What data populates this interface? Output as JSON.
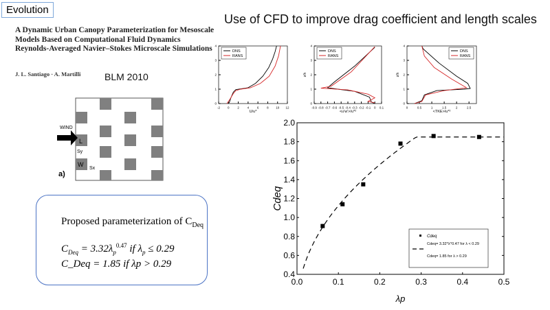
{
  "slide": {
    "tag": "Evolution",
    "headline": "Use of CFD to improve drag coefficient and length scales"
  },
  "paper": {
    "title": "A Dynamic Urban Canopy Parameterization for Mesoscale Models Based on Computational Fluid Dynamics Reynolds-Averaged Navier–Stokes Microscale Simulations",
    "authors": "J. L. Santiago · A. Martilli",
    "journal": "BLM 2010"
  },
  "diagram": {
    "wind": "WIND",
    "L": "L",
    "W": "W",
    "Sy": "Sy",
    "Sx": "Sx",
    "panel": "a)"
  },
  "param": {
    "title": "Proposed parameterization of C",
    "title_sub": "Deq",
    "eq1": "C_Deq = 3.32 λp^0.47 if λp ≤ 0.29",
    "eq2": "C_Deq = 1.85 if λp > 0.29",
    "eq1_parts": {
      "c": "C",
      "sub": "Deq",
      "rest": " = 3.32λ",
      "p": "p",
      "exp": "0.47",
      "cond": " if λ",
      "cond_p": "p",
      "tail": " ≤ 0.29"
    },
    "eq2_parts": {
      "c": "C",
      "sub": "Deq",
      "rest": " = 1.85 if λ",
      "p": "p",
      "tail": " > 0.29"
    }
  },
  "colors": {
    "dns": "#000000",
    "rans": "#d62728",
    "box": "#4a72c4",
    "block": "#808080"
  },
  "chart_data": [
    {
      "type": "line",
      "xlabel": "U/u*",
      "ylabel": "",
      "xlim": [
        -2,
        12
      ],
      "ylim": [
        0,
        4
      ],
      "xticks": [
        -2,
        0,
        2,
        4,
        6,
        8,
        10,
        12
      ],
      "yticks": [
        0,
        1,
        2,
        3,
        4
      ],
      "legend": "top-left",
      "series": [
        {
          "name": "DNS",
          "points": [
            [
              0,
              0
            ],
            [
              0.2,
              0.1
            ],
            [
              0.5,
              0.4
            ],
            [
              1,
              0.8
            ],
            [
              1.5,
              0.97
            ],
            [
              2.5,
              1.02
            ],
            [
              4,
              1.1
            ],
            [
              5.5,
              1.4
            ],
            [
              7,
              1.9
            ],
            [
              8.2,
              2.5
            ],
            [
              9,
              3.1
            ],
            [
              9.5,
              3.6
            ],
            [
              9.8,
              4
            ]
          ]
        },
        {
          "name": "RANS",
          "points": [
            [
              -0.3,
              0
            ],
            [
              0.3,
              0.3
            ],
            [
              1,
              0.7
            ],
            [
              1.5,
              0.9
            ],
            [
              2.5,
              1.0
            ],
            [
              4.5,
              1.1
            ],
            [
              6.5,
              1.4
            ],
            [
              8.3,
              1.9
            ],
            [
              9.5,
              2.6
            ],
            [
              10.2,
              3.3
            ],
            [
              10.6,
              4
            ]
          ]
        }
      ]
    },
    {
      "type": "line",
      "xlabel": "<u'w'>/u*²",
      "ylabel": "z/h",
      "xlim": [
        -0.9,
        0.1
      ],
      "ylim": [
        0,
        4
      ],
      "xticks": [
        -0.9,
        -0.8,
        -0.7,
        -0.6,
        -0.5,
        -0.4,
        -0.3,
        -0.2,
        -0.1,
        0.0,
        0.1
      ],
      "yticks": [
        0,
        1,
        2,
        3,
        4
      ],
      "legend": "top-left",
      "series": [
        {
          "name": "DNS",
          "points": [
            [
              0,
              0
            ],
            [
              -0.05,
              0.1
            ],
            [
              -0.08,
              0.45
            ],
            [
              -0.3,
              0.85
            ],
            [
              -0.55,
              1.0
            ],
            [
              -0.7,
              1.1
            ],
            [
              -0.6,
              1.5
            ],
            [
              -0.3,
              2.6
            ],
            [
              0,
              3.9
            ]
          ]
        },
        {
          "name": "RANS",
          "points": [
            [
              0,
              0.05
            ],
            [
              -0.1,
              0.15
            ],
            [
              0,
              0.4
            ],
            [
              -0.1,
              0.65
            ],
            [
              -0.4,
              0.95
            ],
            [
              -0.8,
              1.07
            ],
            [
              -0.65,
              1.2
            ],
            [
              -0.35,
              2.2
            ],
            [
              0,
              3.95
            ]
          ]
        }
      ]
    },
    {
      "type": "line",
      "xlabel": "<TKE>/u*²",
      "ylabel": "z/h",
      "xlim": [
        0,
        2.8
      ],
      "ylim": [
        0,
        4
      ],
      "xticks": [
        0.0,
        0.5,
        1.0,
        1.5,
        2.0,
        2.5
      ],
      "yticks": [
        0,
        1,
        2,
        3,
        4
      ],
      "legend": "top-right",
      "series": [
        {
          "name": "DNS",
          "points": [
            [
              0.3,
              0
            ],
            [
              0.6,
              0.2
            ],
            [
              0.7,
              0.6
            ],
            [
              1.2,
              0.9
            ],
            [
              2.3,
              1.0
            ],
            [
              2.55,
              1.05
            ],
            [
              2.45,
              1.4
            ],
            [
              2,
              1.9
            ],
            [
              1.3,
              2.8
            ],
            [
              0.65,
              3.8
            ],
            [
              0.6,
              4
            ]
          ]
        },
        {
          "name": "RANS",
          "points": [
            [
              0.3,
              0
            ],
            [
              0.6,
              0.15
            ],
            [
              0.75,
              0.6
            ],
            [
              1.5,
              0.9
            ],
            [
              2.4,
              1.1
            ],
            [
              1.8,
              1.7
            ],
            [
              1.1,
              2.5
            ],
            [
              0.7,
              3.3
            ],
            [
              0.6,
              4
            ]
          ]
        }
      ]
    },
    {
      "type": "scatter",
      "xlabel": "λp",
      "ylabel": "Cdeq",
      "xlim": [
        0,
        0.5
      ],
      "ylim": [
        0.4,
        2.0
      ],
      "xticks": [
        0.0,
        0.1,
        0.2,
        0.3,
        0.4,
        0.5
      ],
      "yticks": [
        0.4,
        0.6,
        0.8,
        1.0,
        1.2,
        1.4,
        1.6,
        1.8,
        2.0
      ],
      "legend": "bottom-right",
      "points": {
        "name": "Cdeq",
        "x": [
          0.062,
          0.11,
          0.16,
          0.25,
          0.33,
          0.44
        ],
        "y": [
          0.91,
          1.14,
          1.35,
          1.78,
          1.86,
          1.85
        ]
      },
      "fit": {
        "legend1": "Cdeq= 3.32*λ^0.47 for λ < 0.29",
        "legend2": "Cdeq= 1.85      for λ > 0.29",
        "a": 3.32,
        "b": 0.47,
        "break": 0.29,
        "const": 1.85
      }
    }
  ]
}
